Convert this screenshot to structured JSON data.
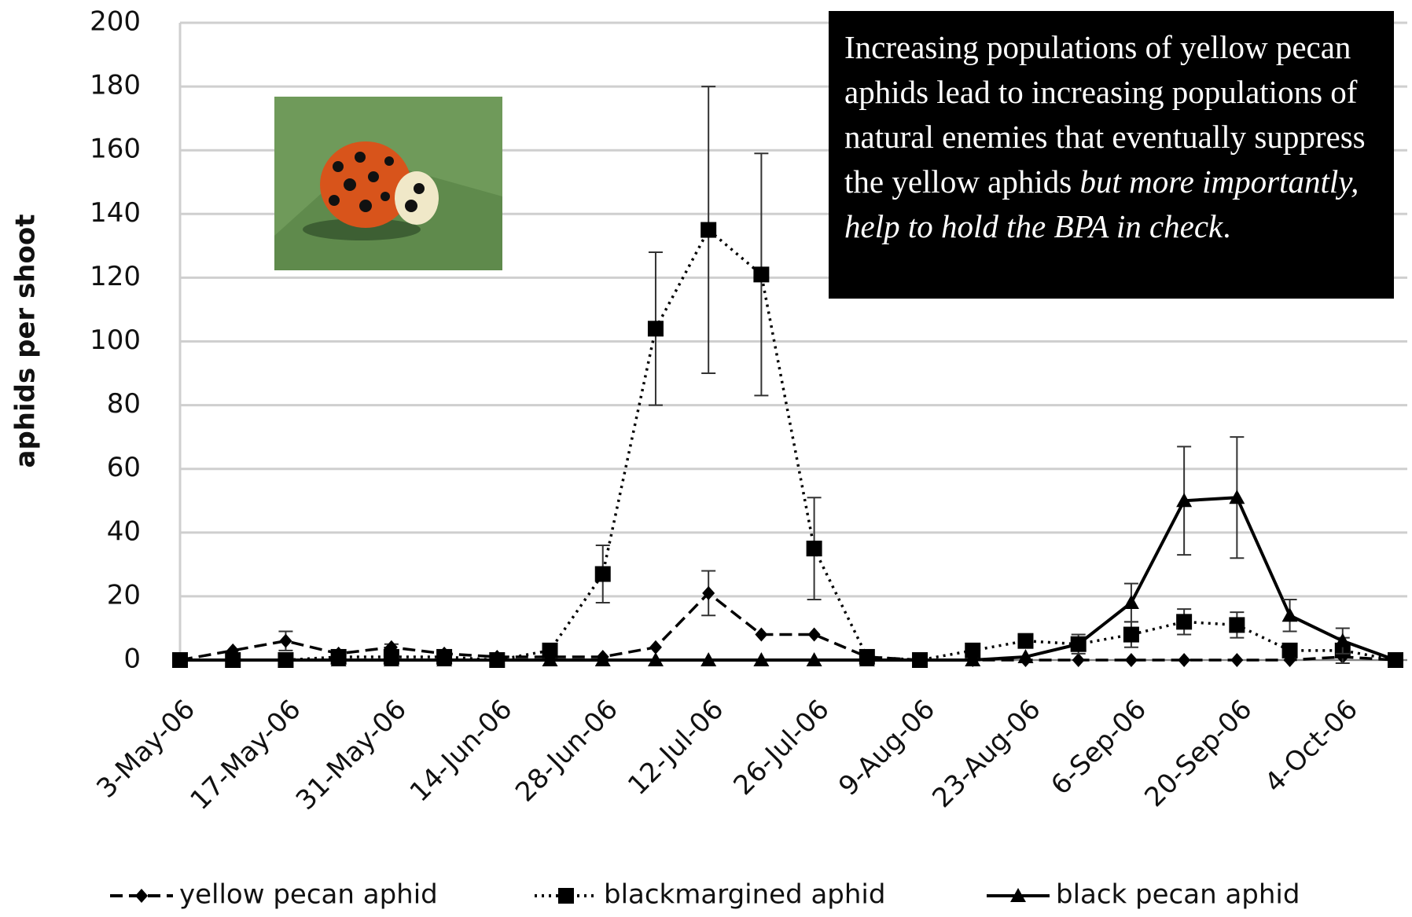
{
  "chart_data": {
    "type": "line",
    "ylabel": "aphids per shoot",
    "categories": [
      "3-May-06",
      null,
      "17-May-06",
      null,
      "31-May-06",
      null,
      "14-Jun-06",
      null,
      "28-Jun-06",
      null,
      "12-Jul-06",
      null,
      "26-Jul-06",
      null,
      "9-Aug-06",
      null,
      "23-Aug-06",
      null,
      "6-Sep-06",
      null,
      "20-Sep-06",
      null,
      "4-Oct-06",
      null
    ],
    "series": [
      {
        "name": "yellow pecan aphid",
        "color": "#000000",
        "marker": "diamond",
        "dash": "dashed",
        "values": [
          0,
          3,
          6,
          2,
          4,
          2,
          1,
          1,
          1,
          4,
          21,
          8,
          8,
          1,
          0,
          0,
          0,
          0,
          0,
          0,
          0,
          0,
          1,
          0
        ],
        "errors": [
          null,
          null,
          3,
          null,
          1,
          null,
          null,
          null,
          null,
          null,
          7,
          null,
          null,
          null,
          null,
          null,
          null,
          null,
          null,
          null,
          null,
          null,
          null,
          null
        ]
      },
      {
        "name": "blackmargined aphid",
        "color": "#000000",
        "marker": "square",
        "dash": "dotted",
        "values": [
          0,
          0,
          0,
          1,
          1,
          1,
          0,
          3,
          27,
          104,
          135,
          121,
          35,
          1,
          0,
          3,
          6,
          5,
          8,
          12,
          11,
          3,
          3,
          0
        ],
        "errors": [
          null,
          null,
          null,
          null,
          null,
          null,
          null,
          null,
          9,
          24,
          45,
          38,
          16,
          null,
          null,
          null,
          null,
          3,
          4,
          4,
          4,
          null,
          4,
          null
        ]
      },
      {
        "name": "black pecan aphid",
        "color": "#000000",
        "marker": "triangle",
        "dash": "solid",
        "values": [
          0,
          0,
          0,
          0,
          0,
          0,
          0,
          0,
          0,
          0,
          0,
          0,
          0,
          0,
          0,
          0,
          1,
          5,
          18,
          50,
          51,
          14,
          6,
          0
        ],
        "errors": [
          null,
          null,
          null,
          null,
          null,
          null,
          null,
          null,
          null,
          null,
          null,
          null,
          null,
          null,
          null,
          null,
          null,
          null,
          6,
          17,
          19,
          5,
          4,
          null
        ]
      }
    ],
    "ylim": [
      0,
      200
    ],
    "yticks": [
      0,
      20,
      40,
      60,
      80,
      100,
      120,
      140,
      160,
      180,
      200
    ],
    "grid": true,
    "legend": "bottom",
    "annotation": [
      "Increasing populations of yellow pecan aphids lead to increasing populations of natural enemies that eventually suppress the yellow aphids ",
      "but more importantly, help to hold the BPA in check",
      "."
    ]
  }
}
